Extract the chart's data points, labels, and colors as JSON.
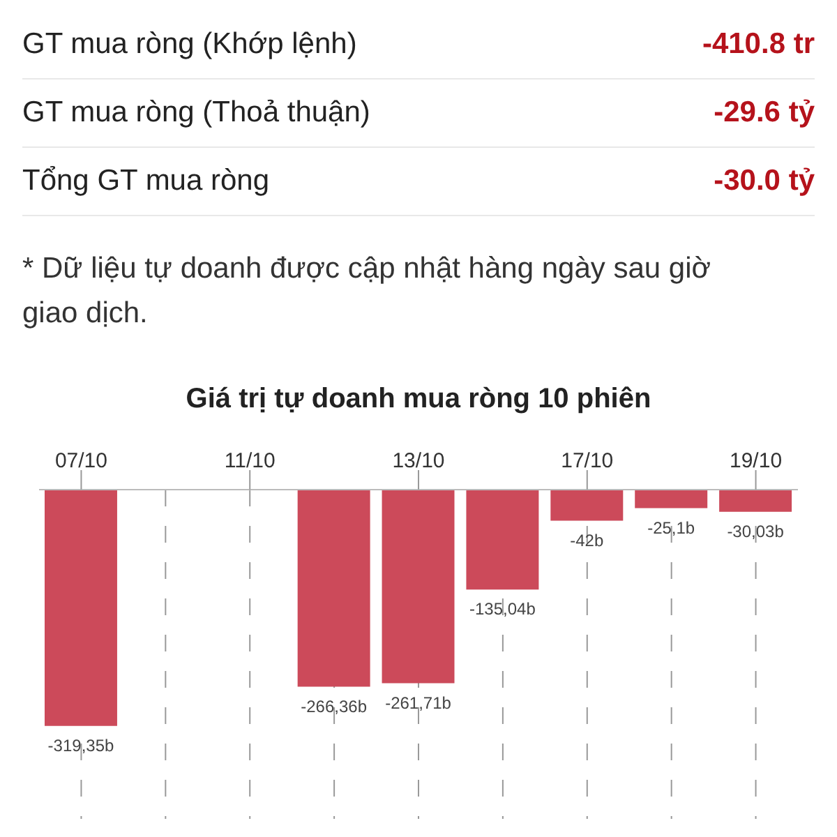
{
  "chart_data": [
    {
      "type": "other",
      "annotations": [
        "GT mua ròng (Khớp lệnh)",
        "-410.8 tr",
        "GT mua ròng (Thoả thuận)",
        "-29.6 tỷ",
        "Tổng GT mua ròng",
        "-30.0 tỷ",
        "* Dữ liệu tự doanh được cập nhật hàng ngày sau giờ giao dịch."
      ],
      "color": "#b5121b"
    },
    {
      "type": "bar",
      "title": "Giá trị tự doanh mua ròng 10 phiên",
      "categories": [
        "07/10",
        null,
        "11/10",
        null,
        "13/10",
        null,
        "17/10",
        null,
        "19/10"
      ],
      "values": [
        -319.35,
        null,
        null,
        -266.36,
        -261.71,
        -135.04,
        -42,
        -25.1,
        -30.03
      ],
      "value_labels": [
        "-319,35b",
        null,
        null,
        "-266,36b",
        "-261,71b",
        "-135,04b",
        "-42b",
        "-25,1b",
        "-30,03b"
      ],
      "color": "#cc4a5a",
      "ylim": [
        -445,
        0
      ],
      "grid": "x"
    }
  ]
}
